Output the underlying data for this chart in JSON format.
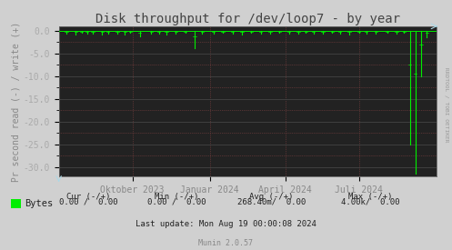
{
  "title": "Disk throughput for /dev/loop7 - by year",
  "ylabel": "Pr second read (-) / write (+)",
  "bg_color": "#d0d0d0",
  "plot_bg_color": "#222222",
  "grid_color_major": "#444444",
  "grid_color_minor": "#553333",
  "line_color": "#00ee00",
  "border_color": "#888888",
  "ylim": [
    -32,
    1.0
  ],
  "yticks": [
    0.0,
    -5.0,
    -10.0,
    -15.0,
    -20.0,
    -25.0,
    -30.0
  ],
  "xtick_labels": [
    "Oktober 2023",
    "Januar 2024",
    "April 2024",
    "Juli 2024"
  ],
  "xtick_positions": [
    0.195,
    0.4,
    0.6,
    0.795
  ],
  "footer_text3": "Last update: Mon Aug 19 00:00:08 2024",
  "munin_text": "Munin 2.0.57",
  "rrdtool_text": "RRDTOOL / TOBI OETIKER",
  "spike_x": [
    0.02,
    0.045,
    0.06,
    0.075,
    0.09,
    0.115,
    0.13,
    0.155,
    0.175,
    0.19,
    0.215,
    0.245,
    0.265,
    0.285,
    0.31,
    0.335,
    0.36,
    0.38,
    0.41,
    0.435,
    0.46,
    0.485,
    0.51,
    0.535,
    0.56,
    0.585,
    0.61,
    0.635,
    0.655,
    0.675,
    0.7,
    0.725,
    0.745,
    0.77,
    0.795,
    0.815,
    0.84,
    0.87,
    0.895,
    0.915,
    0.93,
    0.945,
    0.96,
    0.975
  ],
  "spike_y": [
    -0.6,
    -0.8,
    -0.5,
    -0.7,
    -0.6,
    -0.9,
    -0.7,
    -0.6,
    -0.8,
    -0.5,
    -1.2,
    -0.6,
    -0.7,
    -0.9,
    -0.6,
    -0.5,
    -3.8,
    -0.6,
    -0.7,
    -0.5,
    -0.6,
    -0.8,
    -0.5,
    -0.7,
    -0.6,
    -0.5,
    -0.7,
    -0.6,
    -0.5,
    -0.6,
    -0.7,
    -0.5,
    -0.6,
    -0.8,
    -0.5,
    -0.6,
    -0.7,
    -0.5,
    -0.6,
    -0.5,
    -25.0,
    -31.5,
    -10.0,
    -1.5
  ],
  "title_fontsize": 10,
  "axis_fontsize": 7,
  "tick_fontsize": 7,
  "legend_fontsize": 7.5
}
